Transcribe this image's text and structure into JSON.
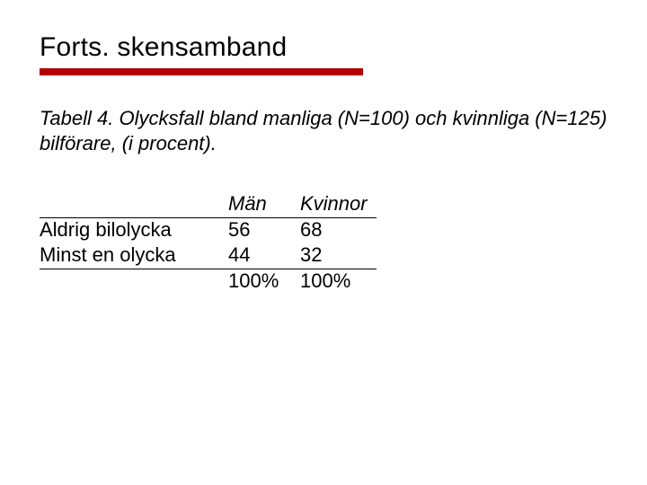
{
  "title": "Forts. skensamband",
  "caption": "Tabell 4. Olycksfall bland manliga (N=100) och kvinnliga (N=125) bilförare, (i procent).",
  "table": {
    "type": "table",
    "columns": [
      "",
      "Män",
      "Kvinnor"
    ],
    "rows": [
      [
        "Aldrig bilolycka",
        "56",
        "68"
      ],
      [
        "Minst en olycka",
        "44",
        "32"
      ]
    ],
    "totals": [
      "",
      "100%",
      "100%"
    ],
    "text_color": "#000000",
    "rule_color": "#000000",
    "fontsize": 22
  },
  "accent_color": "#b40000",
  "background_color": "#ffffff"
}
